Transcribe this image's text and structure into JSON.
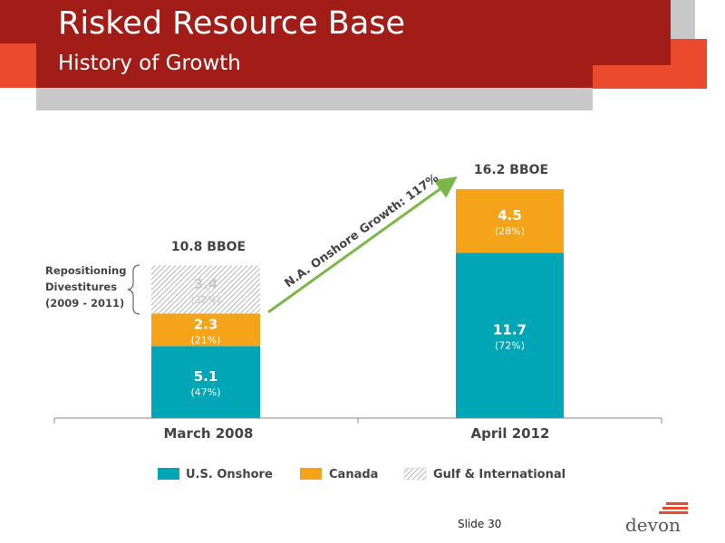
{
  "header": {
    "title": "Risked Resource Base",
    "subtitle": "History of Growth"
  },
  "colors": {
    "us_onshore": "#00a6b6",
    "canada": "#f5a318",
    "gulf": "#cccccc",
    "arrow": "#7ab648",
    "header_red": "#a31d18",
    "accent_orange": "#ec4a2c"
  },
  "chart_data": {
    "type": "bar",
    "stacked": true,
    "categories": [
      "March 2008",
      "April 2012"
    ],
    "series": [
      {
        "name": "U.S. Onshore",
        "values": [
          5.1,
          11.7
        ],
        "labels": [
          "(47%)",
          "(72%)"
        ]
      },
      {
        "name": "Canada",
        "values": [
          2.3,
          4.5
        ],
        "labels": [
          "(21%)",
          "(28%)"
        ]
      },
      {
        "name": "Gulf & International",
        "values": [
          3.4,
          0
        ],
        "labels": [
          "(32%)",
          ""
        ]
      }
    ],
    "totals": [
      "10.8 BBOE",
      "16.2 BBOE"
    ],
    "ylim": [
      0,
      17
    ],
    "annotations": {
      "growth": "N.A. Onshore Growth: 117%",
      "bracket_lines": [
        "Repositioning",
        "Divestitures",
        "(2009 - 2011)"
      ]
    },
    "legend_position": "bottom"
  },
  "footer": {
    "slide": "Slide 30",
    "logo": "devon"
  }
}
